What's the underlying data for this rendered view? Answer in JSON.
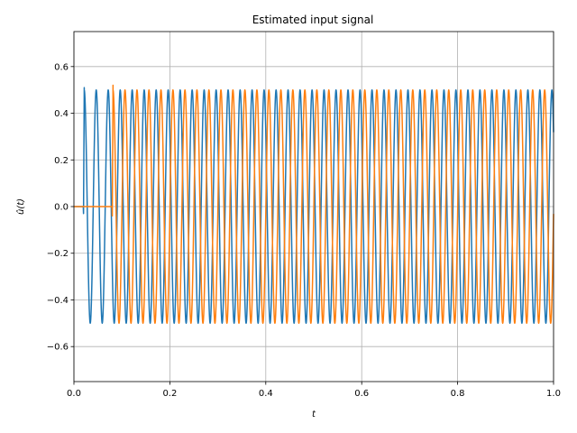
{
  "chart_data": {
    "type": "line",
    "title": "Estimated input signal",
    "xlabel": "t",
    "ylabel": "û(t)",
    "xlim": [
      0.0,
      1.0
    ],
    "ylim": [
      -0.75,
      0.75
    ],
    "xticks": [
      0.0,
      0.2,
      0.4,
      0.6,
      0.8,
      1.0
    ],
    "xtick_labels": [
      "0.0",
      "0.2",
      "0.4",
      "0.6",
      "0.8",
      "1.0"
    ],
    "yticks": [
      -0.6,
      -0.4,
      -0.2,
      0.0,
      0.2,
      0.4,
      0.6
    ],
    "ytick_labels": [
      "−0.6",
      "−0.4",
      "−0.2",
      "0.0",
      "0.2",
      "0.4",
      "0.6"
    ],
    "grid": true,
    "series": [
      {
        "color": "#1f77b4",
        "amplitude": 0.5,
        "frequency_hz": 40,
        "onset_t": 0.02,
        "before_onset_value": 0.0,
        "onset_transient": [
          -0.03,
          0.51
        ]
      },
      {
        "color": "#ff7f0e",
        "amplitude": 0.5,
        "frequency_hz": 40,
        "onset_t": 0.08,
        "before_onset_value": 0.0,
        "onset_transient": [
          -0.04,
          0.52
        ]
      }
    ]
  }
}
